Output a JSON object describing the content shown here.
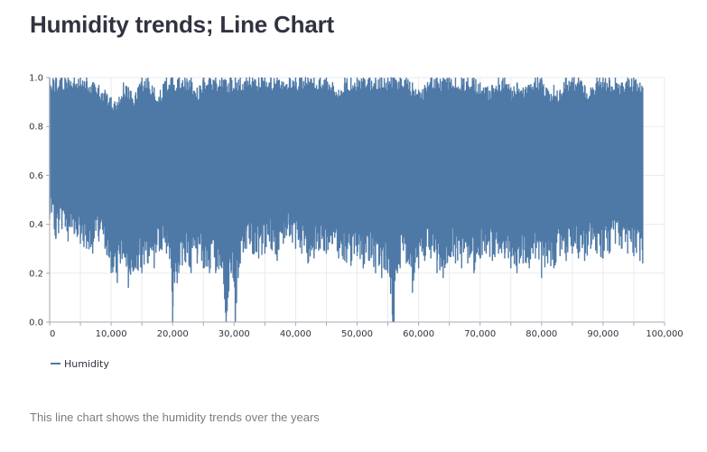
{
  "page": {
    "title": "Humidity trends; Line Chart",
    "caption": "This line chart shows the humidity trends over the years"
  },
  "colors": {
    "series": "#4e79a7",
    "grid": "#e9eaee",
    "axis": "#a9aaad",
    "text": "#31333f",
    "caption": "#7b7d84"
  },
  "chart_data": {
    "type": "line",
    "title": "",
    "xlabel": "",
    "ylabel": "",
    "xlim": [
      0,
      100000
    ],
    "ylim": [
      0,
      1.0
    ],
    "grid": true,
    "legend_placement": "bottom-left",
    "x_ticks": [
      "0",
      "10,000",
      "20,000",
      "30,000",
      "40,000",
      "50,000",
      "60,000",
      "70,000",
      "80,000",
      "90,000",
      "100,000"
    ],
    "y_ticks": [
      "0.0",
      "0.2",
      "0.4",
      "0.6",
      "0.8",
      "1.0"
    ],
    "series": [
      {
        "name": "Humidity",
        "color": "#4e79a7",
        "note_x_extent": 96450,
        "envelope": {
          "x": [
            0,
            1000,
            2000,
            3000,
            4000,
            5000,
            6000,
            7000,
            8000,
            9000,
            10000,
            11000,
            12000,
            12800,
            14000,
            15000,
            16000,
            17000,
            18000,
            19000,
            19800,
            20000,
            21000,
            22000,
            23000,
            24000,
            25000,
            26000,
            27000,
            28000,
            28700,
            29500,
            30200,
            31000,
            32000,
            33000,
            34000,
            35000,
            36000,
            37000,
            38000,
            39000,
            40000,
            41000,
            42000,
            43000,
            44000,
            45000,
            46000,
            47000,
            48000,
            49000,
            50000,
            51000,
            52000,
            53000,
            54000,
            55000,
            55800,
            56000,
            57000,
            58000,
            59000,
            60000,
            61000,
            62000,
            63000,
            64000,
            65000,
            66000,
            67000,
            68000,
            69000,
            70000,
            71000,
            72000,
            73000,
            74000,
            75000,
            76000,
            77000,
            78000,
            79000,
            80000,
            81000,
            82000,
            83000,
            84000,
            85000,
            86000,
            87000,
            88000,
            89000,
            90000,
            91000,
            92000,
            93000,
            94000,
            95000,
            96000,
            96450
          ],
          "max": [
            1.0,
            1.0,
            1.0,
            1.0,
            1.0,
            1.0,
            1.0,
            0.98,
            0.97,
            0.95,
            0.92,
            0.9,
            0.98,
            0.96,
            0.94,
            1.0,
            1.0,
            0.96,
            0.95,
            1.0,
            1.0,
            1.0,
            1.0,
            1.0,
            1.0,
            0.96,
            1.0,
            1.0,
            1.0,
            1.0,
            0.99,
            1.0,
            1.0,
            1.0,
            1.0,
            1.0,
            1.0,
            1.0,
            1.0,
            1.0,
            0.98,
            1.0,
            1.0,
            1.0,
            1.0,
            1.0,
            1.0,
            1.0,
            0.98,
            0.95,
            1.0,
            1.0,
            1.0,
            1.0,
            1.0,
            1.0,
            1.0,
            1.0,
            1.0,
            1.0,
            1.0,
            1.0,
            0.98,
            0.95,
            0.97,
            1.0,
            1.0,
            1.0,
            1.0,
            1.0,
            1.0,
            1.0,
            1.0,
            0.98,
            0.96,
            0.97,
            1.0,
            1.0,
            0.96,
            0.98,
            0.96,
            0.97,
            1.0,
            1.0,
            0.95,
            0.97,
            0.95,
            1.0,
            1.0,
            1.0,
            0.97,
            0.96,
            1.0,
            1.0,
            1.0,
            1.0,
            0.98,
            1.0,
            1.0,
            0.98,
            0.96
          ],
          "min": [
            0.42,
            0.34,
            0.38,
            0.33,
            0.36,
            0.32,
            0.3,
            0.28,
            0.33,
            0.3,
            0.2,
            0.16,
            0.28,
            0.14,
            0.22,
            0.2,
            0.24,
            0.22,
            0.3,
            0.28,
            0.22,
            0.0,
            0.2,
            0.25,
            0.2,
            0.24,
            0.22,
            0.2,
            0.2,
            0.22,
            0.0,
            0.2,
            0.0,
            0.24,
            0.3,
            0.28,
            0.26,
            0.28,
            0.3,
            0.25,
            0.32,
            0.35,
            0.3,
            0.28,
            0.24,
            0.26,
            0.3,
            0.28,
            0.32,
            0.26,
            0.25,
            0.23,
            0.27,
            0.22,
            0.25,
            0.2,
            0.18,
            0.2,
            0.0,
            0.0,
            0.22,
            0.24,
            0.12,
            0.22,
            0.25,
            0.26,
            0.2,
            0.18,
            0.27,
            0.24,
            0.22,
            0.24,
            0.2,
            0.26,
            0.28,
            0.25,
            0.28,
            0.26,
            0.22,
            0.2,
            0.24,
            0.22,
            0.26,
            0.18,
            0.24,
            0.22,
            0.27,
            0.25,
            0.28,
            0.26,
            0.25,
            0.3,
            0.28,
            0.26,
            0.28,
            0.32,
            0.3,
            0.28,
            0.27,
            0.25,
            0.24
          ]
        }
      }
    ]
  }
}
